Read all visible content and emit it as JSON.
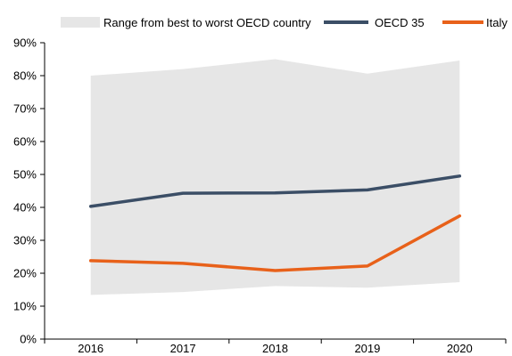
{
  "chart_data": {
    "type": "line",
    "title": "",
    "xlabel": "",
    "ylabel": "",
    "categories": [
      "2016",
      "2017",
      "2018",
      "2019",
      "2020"
    ],
    "ylim": [
      0,
      90
    ],
    "yticks": [
      0,
      10,
      20,
      30,
      40,
      50,
      60,
      70,
      80,
      90
    ],
    "ytick_labels": [
      "0%",
      "10%",
      "20%",
      "30%",
      "40%",
      "50%",
      "60%",
      "70%",
      "80%",
      "90%"
    ],
    "grid": false,
    "legend_position": "top",
    "band": {
      "name": "Range from best to worst OECD country",
      "color": "#e6e6e6",
      "upper": [
        80.0,
        82.0,
        85.0,
        80.6,
        84.6
      ],
      "lower": [
        13.4,
        14.3,
        16.1,
        15.6,
        17.3
      ]
    },
    "series": [
      {
        "name": "OECD 35",
        "color": "#3b4e66",
        "values": [
          40.3,
          44.3,
          44.4,
          45.3,
          49.5
        ]
      },
      {
        "name": "Italy",
        "color": "#e8611a",
        "values": [
          23.8,
          23.0,
          20.8,
          22.2,
          37.4
        ]
      }
    ]
  }
}
